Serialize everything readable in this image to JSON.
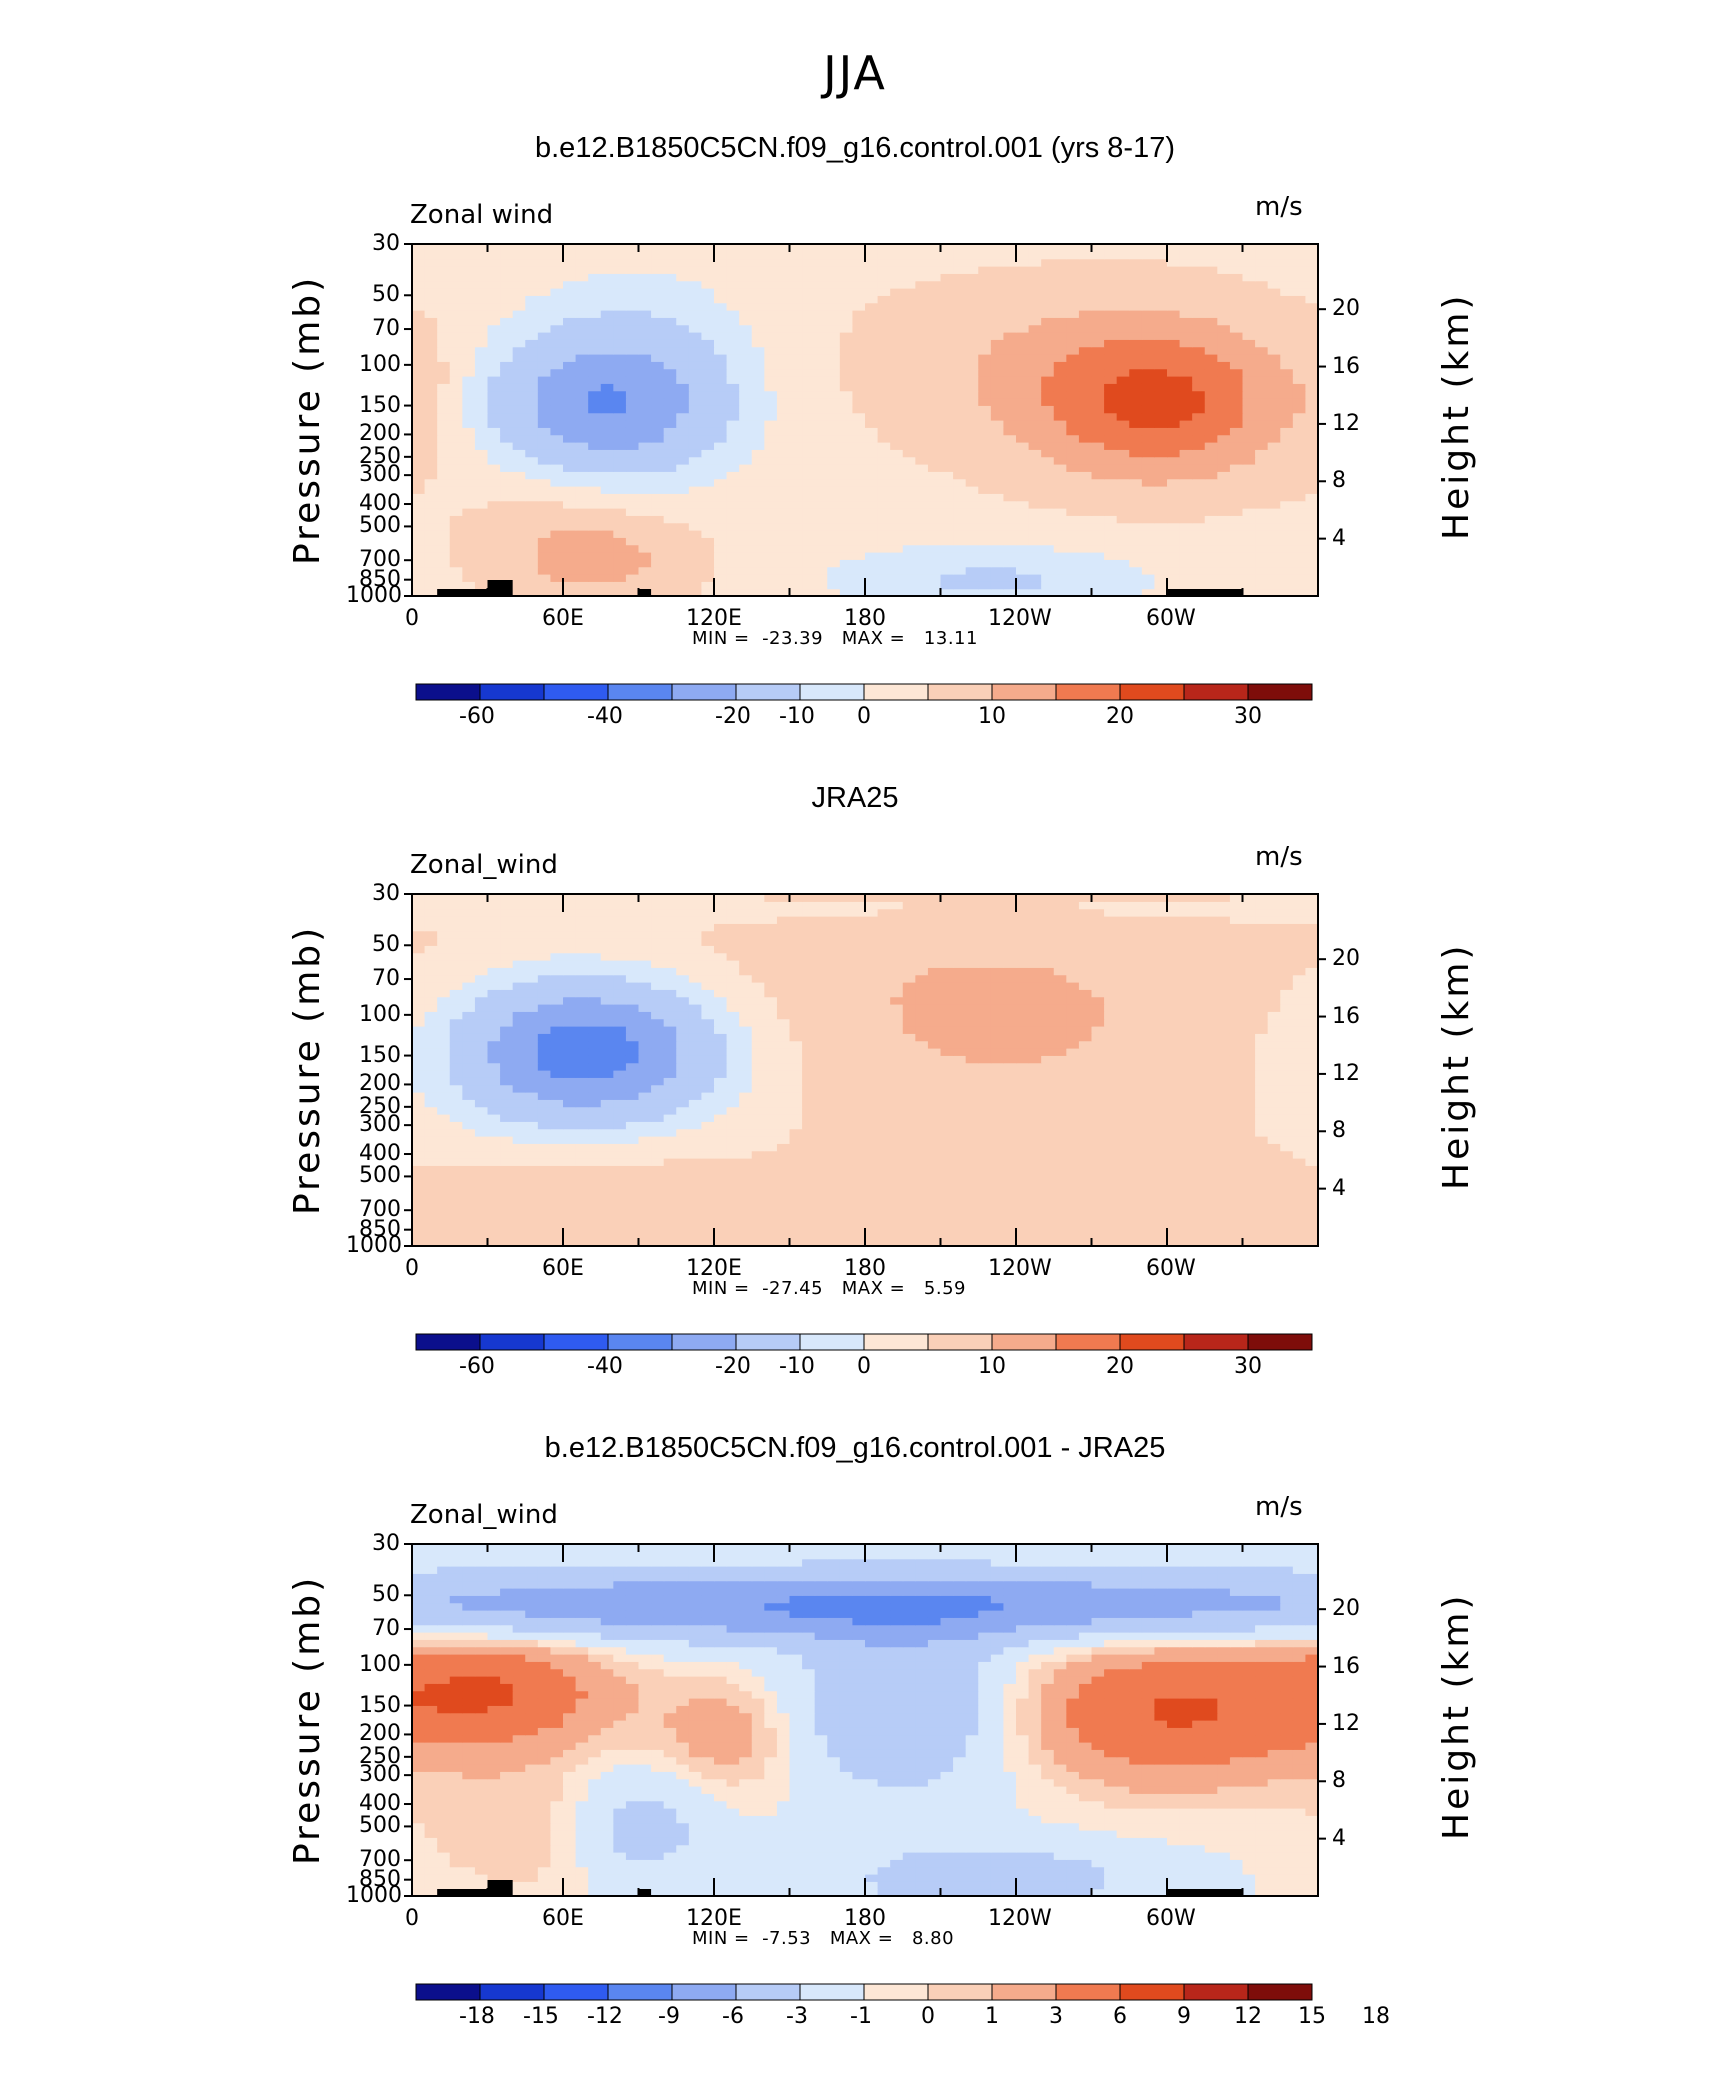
{
  "figure": {
    "season_title": "JJA"
  },
  "palette": {
    "fills": [
      "#0b0f8c",
      "#1638d0",
      "#2f5bf0",
      "#5a86f0",
      "#8eaaf2",
      "#b7ccf7",
      "#d8e8fb",
      "#fde7d6",
      "#fad0b8",
      "#f5ab8c",
      "#f07a50",
      "#e04a1e",
      "#b8261a",
      "#7e0d0a"
    ],
    "land": "#000000"
  },
  "chart_data": [
    {
      "type": "heatmap",
      "title": "b.e12.B1850C5CN.f09_g16.control.001 (yrs 8-17)",
      "variable_label": "Zonal wind",
      "units": "m/s",
      "ylabel": "Pressure (mb)",
      "y2label": "Height (km)",
      "x_ticks": [
        "0",
        "60E",
        "120E",
        "180",
        "120W",
        "60W"
      ],
      "x_range": [
        0,
        360
      ],
      "y_ticks": [
        "30",
        "50",
        "70",
        "100",
        "150",
        "200",
        "250",
        "300",
        "400",
        "500",
        "700",
        "850",
        "1000"
      ],
      "y_range_mb": [
        1000,
        30
      ],
      "y2_ticks": [
        "4",
        "8",
        "12",
        "16",
        "20"
      ],
      "min_label": "MIN =",
      "min_value": "-23.39",
      "max_label": "MAX =",
      "max_value": "13.11",
      "colorbar_labels": [
        "-60",
        "-40",
        "-20",
        "-10",
        "0",
        "10",
        "20",
        "30"
      ],
      "features": [
        {
          "lon": 75,
          "p": 150,
          "value": -22,
          "sx": 30,
          "sp": 0.45
        },
        {
          "lon": 90,
          "p": 110,
          "value": -9,
          "sx": 35,
          "sp": 0.7
        },
        {
          "lon": 300,
          "p": 150,
          "value": 13,
          "sx": 35,
          "sp": 0.55
        },
        {
          "lon": 270,
          "p": 120,
          "value": 6,
          "sx": 55,
          "sp": 0.7
        },
        {
          "lon": 220,
          "p": 90,
          "value": 2,
          "sx": 80,
          "sp": 0.6
        },
        {
          "lon": 75,
          "p": 700,
          "value": 8,
          "sx": 30,
          "sp": 0.35
        },
        {
          "lon": 55,
          "p": 450,
          "value": 3,
          "sx": 30,
          "sp": 0.45
        },
        {
          "lon": 230,
          "p": 850,
          "value": -9,
          "sx": 45,
          "sp": 0.25
        },
        {
          "lon": 5,
          "p": 130,
          "value": 3,
          "sx": 10,
          "sp": 0.5
        }
      ],
      "background_value": -2
    },
    {
      "type": "heatmap",
      "title": "JRA25",
      "variable_label": "Zonal_wind",
      "units": "m/s",
      "ylabel": "Pressure (mb)",
      "y2label": "Height (km)",
      "x_ticks": [
        "0",
        "60E",
        "120E",
        "180",
        "120W",
        "60W"
      ],
      "x_range": [
        0,
        360
      ],
      "y_ticks": [
        "30",
        "50",
        "70",
        "100",
        "150",
        "200",
        "250",
        "300",
        "400",
        "500",
        "700",
        "850",
        "1000"
      ],
      "y_range_mb": [
        1000,
        30
      ],
      "y2_ticks": [
        "4",
        "8",
        "12",
        "16",
        "20"
      ],
      "min_label": "MIN =",
      "min_value": "-27.45",
      "max_label": "MAX =",
      "max_value": "5.59",
      "colorbar_labels": [
        "-60",
        "-40",
        "-20",
        "-10",
        "0",
        "10",
        "20",
        "30"
      ],
      "features": [
        {
          "lon": 70,
          "p": 140,
          "value": -26,
          "sx": 32,
          "sp": 0.45
        },
        {
          "lon": 70,
          "p": 160,
          "value": -12,
          "sx": 55,
          "sp": 0.7
        },
        {
          "lon": 220,
          "p": 100,
          "value": 5,
          "sx": 90,
          "sp": 0.8
        },
        {
          "lon": 75,
          "p": 600,
          "value": 5,
          "sx": 40,
          "sp": 0.45
        },
        {
          "lon": 180,
          "p": 35,
          "value": -3,
          "sx": 400,
          "sp": 0.12
        }
      ],
      "background_value": 1
    },
    {
      "type": "heatmap",
      "title": "b.e12.B1850C5CN.f09_g16.control.001 - JRA25",
      "variable_label": "Zonal_wind",
      "units": "m/s",
      "ylabel": "Pressure (mb)",
      "y2label": "Height (km)",
      "x_ticks": [
        "0",
        "60E",
        "120E",
        "180",
        "120W",
        "60W"
      ],
      "x_range": [
        0,
        360
      ],
      "y_ticks": [
        "30",
        "50",
        "70",
        "100",
        "150",
        "200",
        "250",
        "300",
        "400",
        "500",
        "700",
        "850",
        "1000"
      ],
      "y_range_mb": [
        1000,
        30
      ],
      "y2_ticks": [
        "4",
        "8",
        "12",
        "16",
        "20"
      ],
      "min_label": "MIN =",
      "min_value": "-7.53",
      "max_label": "MAX =",
      "max_value": "8.80",
      "colorbar_labels": [
        "-18",
        "-15",
        "-12",
        "-9",
        "-6",
        "-3",
        "-1",
        "0",
        "1",
        "3",
        "6",
        "9",
        "12",
        "15",
        "18"
      ],
      "features": [
        {
          "lon": 180,
          "p": 55,
          "value": -8,
          "sx": 200,
          "sp": 0.25
        },
        {
          "lon": 195,
          "p": 150,
          "value": -5,
          "sx": 30,
          "sp": 0.6
        },
        {
          "lon": 30,
          "p": 130,
          "value": 7,
          "sx": 35,
          "sp": 0.4
        },
        {
          "lon": 300,
          "p": 160,
          "value": 7,
          "sx": 40,
          "sp": 0.5
        },
        {
          "lon": 125,
          "p": 200,
          "value": 3,
          "sx": 20,
          "sp": 0.4
        },
        {
          "lon": 90,
          "p": 500,
          "value": -4,
          "sx": 20,
          "sp": 0.4
        },
        {
          "lon": 230,
          "p": 850,
          "value": -4,
          "sx": 40,
          "sp": 0.25
        },
        {
          "lon": 50,
          "p": 500,
          "value": 2,
          "sx": 35,
          "sp": 0.5
        }
      ],
      "background_value": -1,
      "levels": [
        -18,
        -15,
        -12,
        -9,
        -6,
        -3,
        -1,
        0,
        1,
        3,
        6,
        9,
        12,
        15,
        18
      ]
    }
  ]
}
